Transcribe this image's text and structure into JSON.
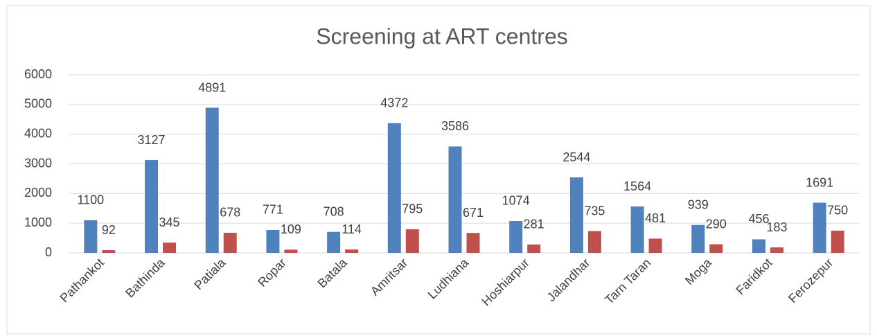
{
  "chart_data": {
    "type": "bar",
    "title": "Screening at ART centres",
    "categories": [
      "Pathankot",
      "Bathinda",
      "Patiala",
      "Ropar",
      "Batala",
      "Amritsar",
      "Ludhiana",
      "Hoshiarpur",
      "Jalandhar",
      "Tarn Taran",
      "Moga",
      "Faridkot",
      "Ferozepur"
    ],
    "series": [
      {
        "color": "#4f81bd",
        "values": [
          1100,
          3127,
          4891,
          771,
          708,
          4372,
          3586,
          1074,
          2544,
          1564,
          939,
          456,
          1691
        ]
      },
      {
        "color": "#c0504d",
        "values": [
          92,
          345,
          678,
          109,
          114,
          795,
          671,
          281,
          735,
          481,
          290,
          183,
          750
        ]
      }
    ],
    "ylim": [
      0,
      6000
    ],
    "yticks": [
      0,
      1000,
      2000,
      3000,
      4000,
      5000,
      6000
    ],
    "grid": true
  }
}
